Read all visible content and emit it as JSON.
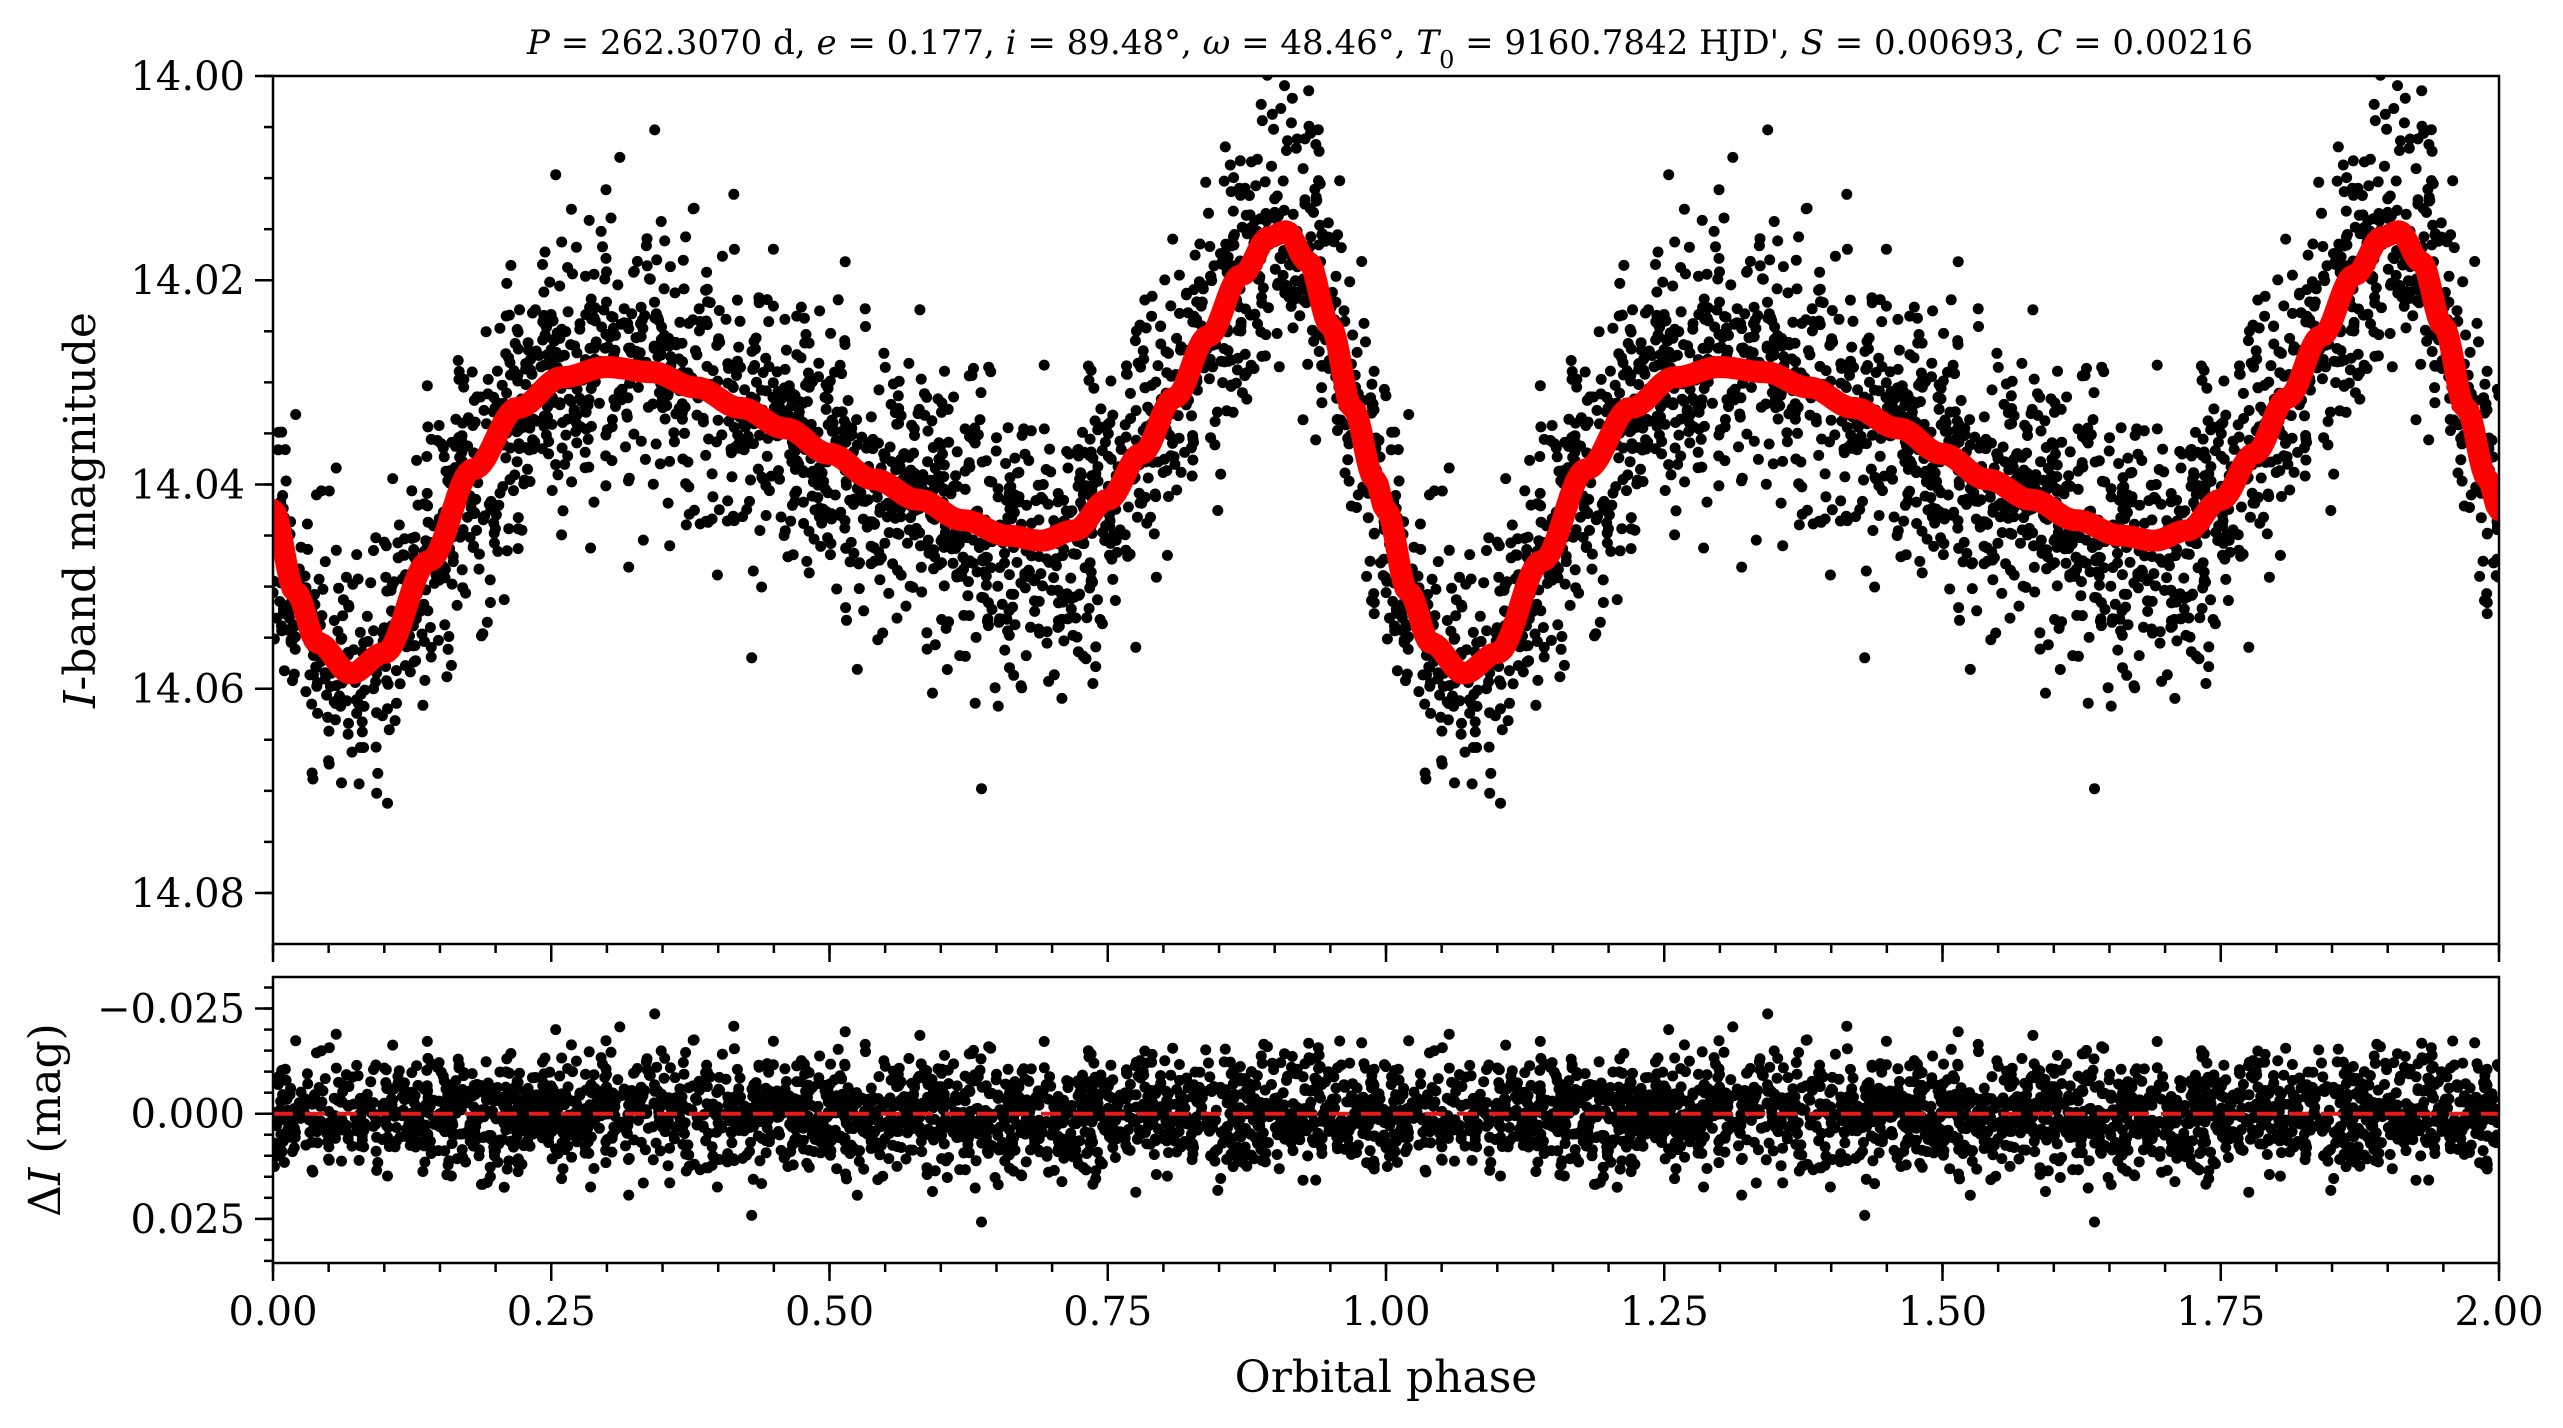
{
  "title": "P = 262.3070 d, e = 0.177, i = 89.48°, ω = 48.46°, T0 = 9160.7842 HJD', S = 0.00693, C = 0.00216",
  "title_parts": {
    "p_sym": "P",
    "p_val": " = 262.3070 d, ",
    "e_sym": "e",
    "e_val": " = 0.177, ",
    "i_sym": "i",
    "i_val": " = 89.48°, ",
    "w_sym": "ω",
    "w_val": " = 48.46°, ",
    "t_sym": "T",
    "t_sub": "0",
    "t_val": " = 9160.7842 HJD', ",
    "s_sym": "S",
    "s_val": " = 0.00693, ",
    "c_sym": "C",
    "c_val": " = 0.00216"
  },
  "colors": {
    "points": "#000000",
    "model": "#ff0000",
    "zero_line": "#e41a1c",
    "axes": "#000000"
  },
  "chart_data": [
    {
      "type": "scatter",
      "panel": "light-curve",
      "ylabel_italic": "I",
      "ylabel_rest": "-band magnitude",
      "xlim": [
        0.0,
        2.0
      ],
      "ylim": [
        14.0,
        14.085
      ],
      "y_inverted": true,
      "yticks": [
        "14.00",
        "14.02",
        "14.04",
        "14.06",
        "14.08"
      ],
      "ytick_values": [
        14.0,
        14.02,
        14.04,
        14.06,
        14.08
      ],
      "grid": false,
      "series": [
        {
          "kind": "observations",
          "marker": "filled-circle",
          "color": "#000000",
          "noise_sigma_mag": 0.0065,
          "points_per_unit_phase": 3500
        },
        {
          "kind": "model",
          "line": "solid-thick",
          "color": "#ff0000",
          "x": [
            0.0,
            0.02,
            0.04,
            0.07,
            0.1,
            0.14,
            0.18,
            0.22,
            0.26,
            0.3,
            0.34,
            0.38,
            0.42,
            0.46,
            0.5,
            0.54,
            0.58,
            0.62,
            0.66,
            0.69,
            0.72,
            0.75,
            0.78,
            0.81,
            0.84,
            0.87,
            0.895,
            0.91,
            0.93,
            0.95,
            0.97,
            0.99,
            1.0
          ],
          "y": [
            14.0425,
            14.0505,
            14.0555,
            14.0585,
            14.0565,
            14.0475,
            14.0385,
            14.0325,
            14.0295,
            14.0285,
            14.029,
            14.0305,
            14.0325,
            14.0345,
            14.037,
            14.0395,
            14.0415,
            14.0435,
            14.045,
            14.0455,
            14.0445,
            14.0415,
            14.037,
            14.0315,
            14.0255,
            14.0195,
            14.0158,
            14.0152,
            14.0182,
            14.0245,
            14.0325,
            14.0395,
            14.0425
          ]
        }
      ]
    },
    {
      "type": "scatter",
      "panel": "residuals",
      "ylabel_sym": "ΔI",
      "ylabel_italic": "I",
      "ylabel_rest": " (mag)",
      "xlabel": "Orbital phase",
      "xlim": [
        0.0,
        2.0
      ],
      "ylim": [
        -0.0325,
        0.0355
      ],
      "y_inverted": true,
      "yticks": [
        "−0.025",
        "0.000",
        "0.025"
      ],
      "ytick_values": [
        -0.025,
        0.0,
        0.025
      ],
      "xticks": [
        "0.00",
        "0.25",
        "0.50",
        "0.75",
        "1.00",
        "1.25",
        "1.50",
        "1.75",
        "2.00"
      ],
      "xtick_values": [
        0.0,
        0.25,
        0.5,
        0.75,
        1.0,
        1.25,
        1.5,
        1.75,
        2.0
      ],
      "grid": false,
      "zero_line": {
        "y": 0.0,
        "style": "dashed",
        "color": "#e41a1c"
      },
      "series": [
        {
          "kind": "residuals",
          "marker": "filled-circle",
          "color": "#000000",
          "noise_sigma_mag": 0.0065,
          "points_per_unit_phase": 3500
        }
      ]
    }
  ]
}
